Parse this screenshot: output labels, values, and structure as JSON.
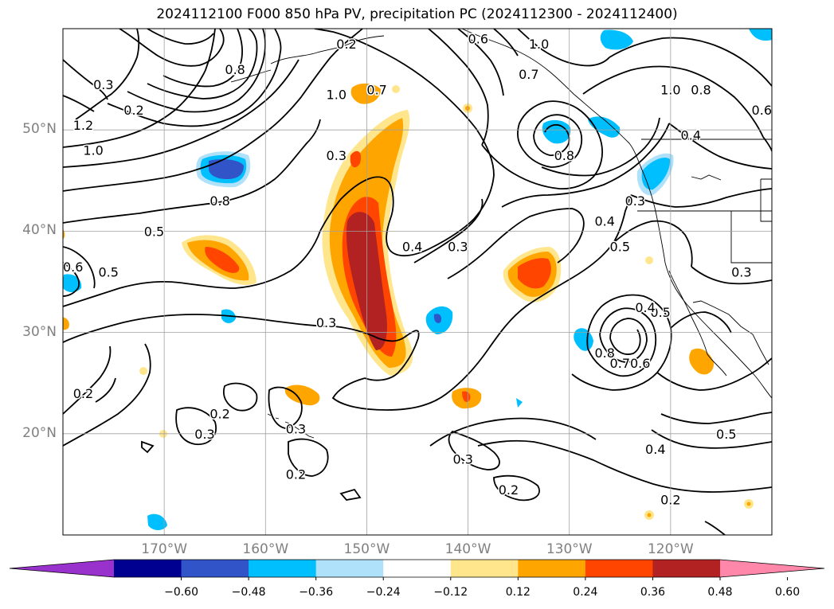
{
  "title": "2024112100 F000 850 hPa PV, precipitation PC (2024112300 - 2024112400)",
  "map": {
    "lat_ticks": [
      {
        "lat": 50,
        "label": "50°N"
      },
      {
        "lat": 40,
        "label": "40°N"
      },
      {
        "lat": 30,
        "label": "30°N"
      },
      {
        "lat": 20,
        "label": "20°N"
      }
    ],
    "lon_ticks": [
      {
        "lon": -170,
        "label": "170°W"
      },
      {
        "lon": -160,
        "label": "160°W"
      },
      {
        "lon": -150,
        "label": "150°W"
      },
      {
        "lon": -140,
        "label": "140°W"
      },
      {
        "lon": -130,
        "label": "130°W"
      },
      {
        "lon": -120,
        "label": "120°W"
      }
    ],
    "lon_range": [
      -180,
      -110
    ],
    "lat_range": [
      10,
      60
    ],
    "grid": true,
    "contour_labels": [
      {
        "text": "0.3",
        "lon": -176,
        "lat": 54.5
      },
      {
        "text": "0.2",
        "lon": -173,
        "lat": 52
      },
      {
        "text": "1.2",
        "lon": -178,
        "lat": 50.5
      },
      {
        "text": "1.0",
        "lon": -177,
        "lat": 48
      },
      {
        "text": "0.8",
        "lon": -163,
        "lat": 56
      },
      {
        "text": "0.2",
        "lon": -152,
        "lat": 58.5
      },
      {
        "text": "1.0",
        "lon": -153,
        "lat": 53.5
      },
      {
        "text": "0.7",
        "lon": -149,
        "lat": 54
      },
      {
        "text": "0.3",
        "lon": -153,
        "lat": 47.5
      },
      {
        "text": "0.8",
        "lon": -164.5,
        "lat": 43
      },
      {
        "text": "0.5",
        "lon": -171,
        "lat": 40
      },
      {
        "text": "0.6",
        "lon": -179,
        "lat": 36.5
      },
      {
        "text": "0.5",
        "lon": -175.5,
        "lat": 36
      },
      {
        "text": "0.3",
        "lon": -154,
        "lat": 31
      },
      {
        "text": "0.4",
        "lon": -145.5,
        "lat": 38.5
      },
      {
        "text": "0.3",
        "lon": -141,
        "lat": 38.5
      },
      {
        "text": "0.6",
        "lon": -139,
        "lat": 59
      },
      {
        "text": "1.0",
        "lon": -133,
        "lat": 58.5
      },
      {
        "text": "0.7",
        "lon": -134,
        "lat": 55.5
      },
      {
        "text": "0.8",
        "lon": -130.5,
        "lat": 47.5
      },
      {
        "text": "1.0",
        "lon": -120,
        "lat": 54
      },
      {
        "text": "0.8",
        "lon": -117,
        "lat": 54
      },
      {
        "text": "0.6",
        "lon": -111,
        "lat": 52
      },
      {
        "text": "0.4",
        "lon": -118,
        "lat": 49.5
      },
      {
        "text": "0.3",
        "lon": -123.5,
        "lat": 43
      },
      {
        "text": "0.4",
        "lon": -126.5,
        "lat": 41
      },
      {
        "text": "0.5",
        "lon": -125,
        "lat": 38.5
      },
      {
        "text": "0.3",
        "lon": -113,
        "lat": 36
      },
      {
        "text": "0.5",
        "lon": -121,
        "lat": 32
      },
      {
        "text": "0.4",
        "lon": -122.5,
        "lat": 32.5
      },
      {
        "text": "0.8",
        "lon": -126.5,
        "lat": 28
      },
      {
        "text": "0.7",
        "lon": -125,
        "lat": 27
      },
      {
        "text": "0.6",
        "lon": -123,
        "lat": 27
      },
      {
        "text": "0.2",
        "lon": -178,
        "lat": 24
      },
      {
        "text": "0.2",
        "lon": -164.5,
        "lat": 22
      },
      {
        "text": "0.3",
        "lon": -166,
        "lat": 20
      },
      {
        "text": "0.3",
        "lon": -157,
        "lat": 20.5
      },
      {
        "text": "0.2",
        "lon": -157,
        "lat": 16
      },
      {
        "text": "0.3",
        "lon": -140.5,
        "lat": 17.5
      },
      {
        "text": "0.2",
        "lon": -136,
        "lat": 14.5
      },
      {
        "text": "0.4",
        "lon": -121.5,
        "lat": 18.5
      },
      {
        "text": "0.5",
        "lon": -114.5,
        "lat": 20
      },
      {
        "text": "0.2",
        "lon": -120,
        "lat": 13.5
      }
    ]
  },
  "colorbar": {
    "colors": [
      "#9932cc",
      "#000090",
      "#3155c9",
      "#00bfff",
      "#afe1fa",
      "#ffffff",
      "#ffe68c",
      "#ffa500",
      "#ff4500",
      "#b22222",
      "#ff88aa"
    ],
    "tick_labels": [
      "−0.60",
      "−0.48",
      "−0.36",
      "−0.24",
      "−0.12",
      "0.12",
      "0.24",
      "0.36",
      "0.48",
      "0.60"
    ]
  }
}
